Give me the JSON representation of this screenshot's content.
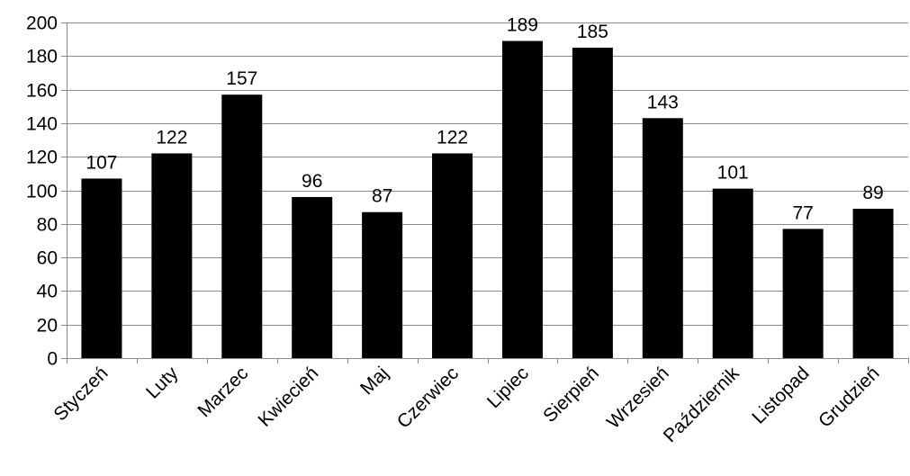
{
  "chart_data": {
    "type": "bar",
    "categories": [
      "Styczeń",
      "Luty",
      "Marzec",
      "Kwiecień",
      "Maj",
      "Czerwiec",
      "Lipiec",
      "Sierpień",
      "Wrzesień",
      "Październik",
      "Listopad",
      "Grudzień"
    ],
    "values": [
      107,
      122,
      157,
      96,
      87,
      122,
      189,
      185,
      143,
      101,
      77,
      89
    ],
    "data_labels": [
      "107",
      "122",
      "157",
      "96",
      "87",
      "122",
      "189",
      "185",
      "143",
      "101",
      "77",
      "89"
    ],
    "y_ticks": [
      0,
      20,
      40,
      60,
      80,
      100,
      120,
      140,
      160,
      180,
      200
    ],
    "ylim": [
      0,
      200
    ],
    "title": "",
    "xlabel": "",
    "ylabel": "",
    "grid": true,
    "legend": "none",
    "bar_color": "#000000",
    "grid_color": "#8c8c8c"
  }
}
